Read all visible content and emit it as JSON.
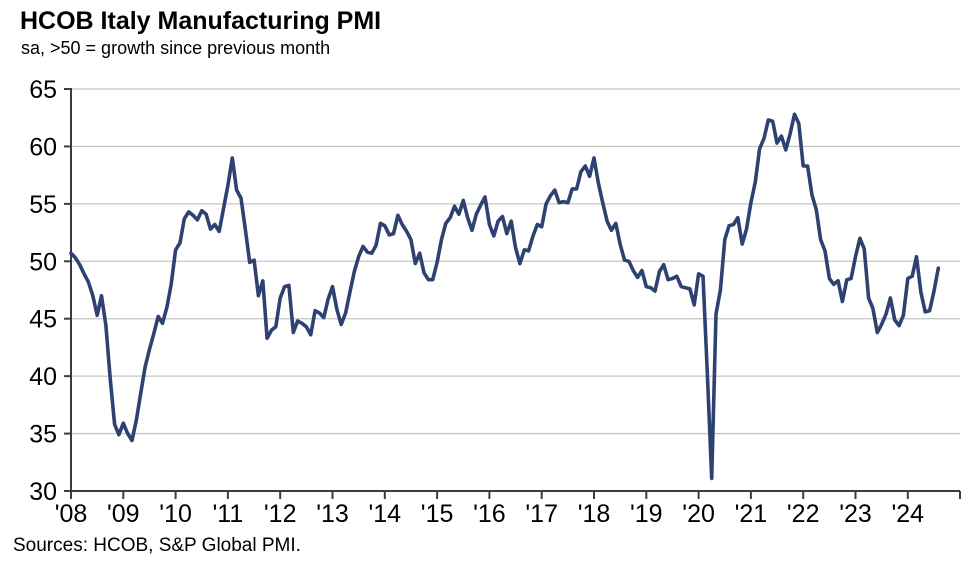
{
  "header": {
    "title": "HCOB Italy Manufacturing PMI",
    "subtitle": "sa, >50 = growth since previous month"
  },
  "footer": {
    "sources": "Sources: HCOB, S&P Global PMI."
  },
  "chart_data": {
    "type": "line",
    "title": "HCOB Italy Manufacturing PMI",
    "subtitle": "sa, >50 = growth since previous month",
    "source_note": "Sources: HCOB, S&P Global PMI.",
    "frequency": "monthly",
    "x_start": "2008-01",
    "x_end": "2024-08",
    "x_tick_labels": [
      "'08",
      "'09",
      "'10",
      "'11",
      "'12",
      "'13",
      "'14",
      "'15",
      "'16",
      "'17",
      "'18",
      "'19",
      "'20",
      "'21",
      "'22",
      "'23",
      "'24"
    ],
    "y_ticks": [
      30,
      35,
      40,
      45,
      50,
      55,
      60,
      65
    ],
    "ylim": [
      30,
      65
    ],
    "grid": "horizontal",
    "legend": "none",
    "colors": {
      "line": "#2E4272",
      "grid": "#C6C6C6",
      "axis": "#3C3C3C",
      "text": "#000000"
    },
    "series": [
      {
        "name": "Italy Manufacturing PMI (sa)",
        "values": [
          50.7,
          50.3,
          49.7,
          48.9,
          48.2,
          47.0,
          45.3,
          47.0,
          44.4,
          39.8,
          35.8,
          34.9,
          35.9,
          35.0,
          34.4,
          36.2,
          38.5,
          40.8,
          42.3,
          43.7,
          45.2,
          44.6,
          46.0,
          48.0,
          51.0,
          51.6,
          53.7,
          54.3,
          54.0,
          53.6,
          54.4,
          54.1,
          52.8,
          53.2,
          52.6,
          54.6,
          56.6,
          59.0,
          56.2,
          55.5,
          52.8,
          49.9,
          50.1,
          47.0,
          48.3,
          43.3,
          44.0,
          44.3,
          46.8,
          47.8,
          47.9,
          43.8,
          44.8,
          44.6,
          44.3,
          43.6,
          45.7,
          45.5,
          45.1,
          46.7,
          47.8,
          45.8,
          44.5,
          45.5,
          47.3,
          49.1,
          50.4,
          51.3,
          50.8,
          50.7,
          51.4,
          53.3,
          53.1,
          52.3,
          52.4,
          54.0,
          53.2,
          52.6,
          51.9,
          49.8,
          50.7,
          49.0,
          48.4,
          48.4,
          49.9,
          51.9,
          53.3,
          53.8,
          54.8,
          54.1,
          55.3,
          53.8,
          52.7,
          54.1,
          54.9,
          55.6,
          53.2,
          52.2,
          53.5,
          53.9,
          52.4,
          53.5,
          51.2,
          49.8,
          51.0,
          50.9,
          52.2,
          53.2,
          53.0,
          55.0,
          55.7,
          56.2,
          55.1,
          55.2,
          55.1,
          56.3,
          56.3,
          57.8,
          58.3,
          57.4,
          59.0,
          56.8,
          55.1,
          53.5,
          52.7,
          53.3,
          51.5,
          50.1,
          50.0,
          49.2,
          48.6,
          49.2,
          47.8,
          47.7,
          47.4,
          49.1,
          49.7,
          48.4,
          48.5,
          48.7,
          47.8,
          47.7,
          47.6,
          46.2,
          48.9,
          48.7,
          40.3,
          31.1,
          45.4,
          47.5,
          51.9,
          53.1,
          53.2,
          53.8,
          51.5,
          52.8,
          55.1,
          56.9,
          59.8,
          60.7,
          62.3,
          62.2,
          60.3,
          60.9,
          59.7,
          61.1,
          62.8,
          62.0,
          58.3,
          58.3,
          55.8,
          54.5,
          51.9,
          50.9,
          48.5,
          48.0,
          48.3,
          46.5,
          48.4,
          48.5,
          50.4,
          52.0,
          51.1,
          46.8,
          45.9,
          43.8,
          44.5,
          45.4,
          46.8,
          44.9,
          44.4,
          45.3,
          48.5,
          48.7,
          50.4,
          47.3,
          45.6,
          45.7,
          47.4,
          49.4
        ]
      }
    ]
  }
}
